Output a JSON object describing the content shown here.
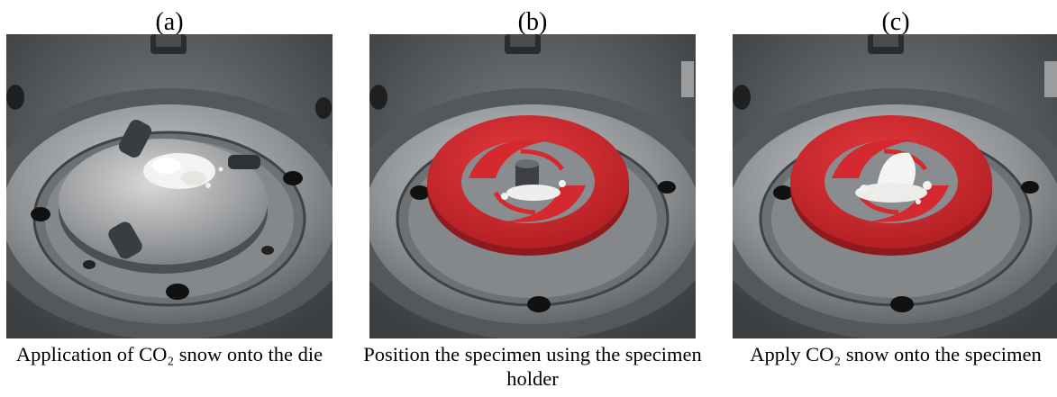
{
  "panels": [
    {
      "label": "(a)",
      "caption": "Application of CO₂ snow onto the die",
      "image": {
        "alt": "Application of CO₂ snow onto the die"
      }
    },
    {
      "label": "(b)",
      "caption": "Position the specimen using the specimen holder",
      "image": {
        "alt": "Position the specimen using the specimen holder"
      }
    },
    {
      "label": "(c)",
      "caption": "Apply CO₂ snow onto the specimen",
      "image": {
        "alt": "Apply CO₂ snow onto the specimen"
      }
    }
  ],
  "colors": {
    "steel_dark": "#3a3d40",
    "steel_mid": "#8a8d90",
    "steel_light": "#c4c6c8",
    "holder_red": "#d42a2f",
    "snow": "#f4f4f2"
  }
}
